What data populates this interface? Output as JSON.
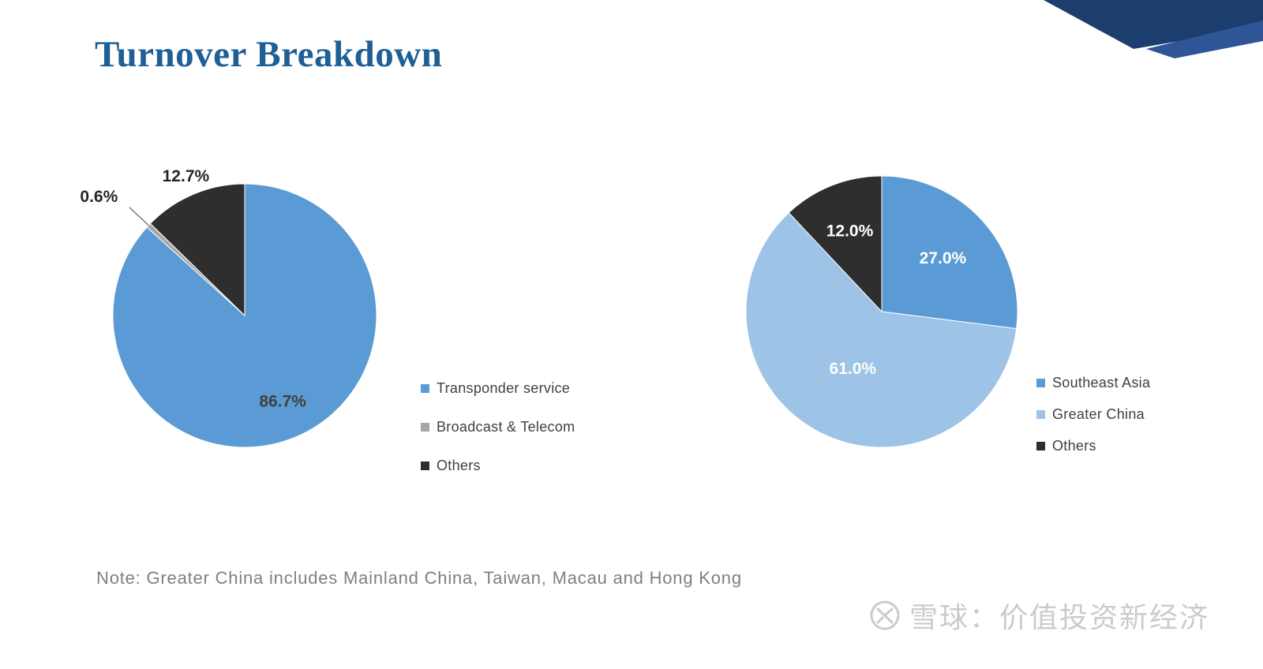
{
  "slide": {
    "title": "Turnover Breakdown",
    "note": "Note: Greater China includes Mainland China, Taiwan, Macau and Hong Kong",
    "watermark": "雪球：价值投资新经济"
  },
  "colors": {
    "title": "#1E5F96",
    "ribbon_navy": "#1C3E6E",
    "ribbon_blue": "#2F5597",
    "legend_text": "#404040",
    "note_text": "#7F7F7F",
    "watermark": "#CBCBCB",
    "leader_line": "#7F7F7F"
  },
  "chart_data": [
    {
      "type": "pie",
      "name": "Turnover breakdown by business",
      "start_angle": -90,
      "legend_position": "right",
      "labels": [
        "Transponder service",
        "Broadcast & Telecom",
        "Others"
      ],
      "values": [
        86.7,
        0.6,
        12.7
      ],
      "slices": [
        {
          "label": "Transponder service",
          "value": 86.7,
          "display": "86.7%",
          "color": "#5B9BD5",
          "label_color": "#3F3F3F",
          "label_radius": 0.71,
          "placement": "inside"
        },
        {
          "label": "Broadcast & Telecom",
          "value": 0.6,
          "display": "0.6%",
          "color": "#A6A6A6",
          "label_color": "#262626",
          "label_radius": 1.32,
          "placement": "leader"
        },
        {
          "label": "Others",
          "value": 12.7,
          "display": "12.7%",
          "color": "#2E2E2E",
          "label_color": "#262626",
          "label_radius": 1.15,
          "placement": "outside"
        }
      ]
    },
    {
      "type": "pie",
      "name": "Turnover breakdown by region",
      "start_angle": -90,
      "legend_position": "right",
      "labels": [
        "Southeast Asia",
        "Greater China",
        "Others"
      ],
      "values": [
        27.0,
        61.0,
        12.0
      ],
      "slices": [
        {
          "label": "Southeast Asia",
          "value": 27.0,
          "display": "27.0%",
          "color": "#5B9BD5",
          "label_color": "#FFFFFF",
          "label_radius": 0.6,
          "placement": "inside"
        },
        {
          "label": "Greater China",
          "value": 61.0,
          "display": "61.0%",
          "color": "#9DC3E6",
          "label_color": "#FFFFFF",
          "label_radius": 0.47,
          "placement": "inside"
        },
        {
          "label": "Others",
          "value": 12.0,
          "display": "12.0%",
          "color": "#2E2E2E",
          "label_color": "#FFFFFF",
          "label_radius": 0.64,
          "placement": "inside"
        }
      ]
    }
  ]
}
